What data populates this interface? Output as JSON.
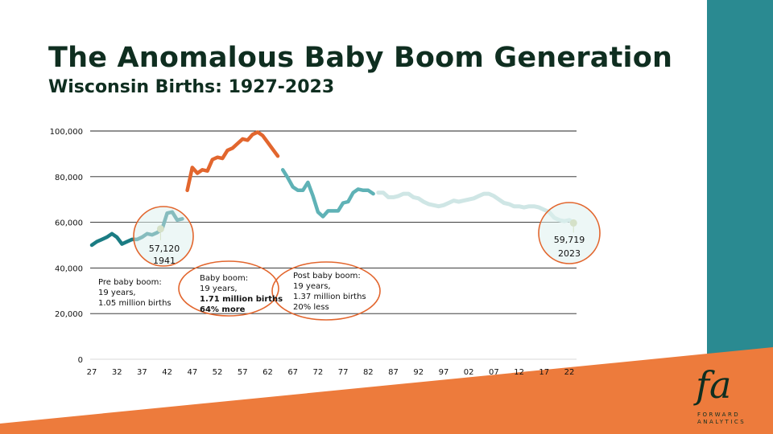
{
  "title": "The Anomalous Baby Boom Generation",
  "subtitle": "Wisconsin Births: 1927-2023",
  "colors": {
    "pre_boom": "#1b7c83",
    "boom": "#e2662e",
    "post_boom": "#5fb2b6",
    "recent": "#cfe6e5",
    "circle": "#e2662e",
    "accent_teal": "#2a8a91",
    "accent_orange": "#ed7b3c",
    "marker": "#c9cf9a"
  },
  "chart_data": {
    "type": "line",
    "ylim": [
      0,
      100000
    ],
    "yticks": [
      "0",
      "20,000",
      "40,000",
      "60,000",
      "80,000",
      "100,000"
    ],
    "xticks": [
      "27",
      "32",
      "37",
      "42",
      "47",
      "52",
      "57",
      "62",
      "67",
      "72",
      "77",
      "82",
      "87",
      "92",
      "97",
      "02",
      "07",
      "12",
      "17",
      "22"
    ],
    "grid": true,
    "series": [
      {
        "segment": "pre_boom",
        "x": [
          1927,
          1928,
          1929,
          1930,
          1931,
          1932,
          1933,
          1934,
          1935,
          1936,
          1937,
          1938,
          1939,
          1940,
          1941,
          1942,
          1943,
          1944,
          1945
        ],
        "y": [
          50000,
          51500,
          52500,
          53500,
          55000,
          53500,
          50500,
          51500,
          52500,
          52500,
          53500,
          55000,
          54500,
          55500,
          57120,
          64000,
          64500,
          61000,
          61500
        ]
      },
      {
        "segment": "boom",
        "x": [
          1946,
          1947,
          1948,
          1949,
          1950,
          1951,
          1952,
          1953,
          1954,
          1955,
          1956,
          1957,
          1958,
          1959,
          1960,
          1961,
          1962,
          1963,
          1964
        ],
        "y": [
          74000,
          84000,
          81500,
          83000,
          82500,
          87500,
          88500,
          88000,
          91500,
          92500,
          94500,
          96500,
          96000,
          98500,
          99500,
          98000,
          95000,
          92000,
          89000
        ]
      },
      {
        "segment": "post_boom",
        "x": [
          1965,
          1966,
          1967,
          1968,
          1969,
          1970,
          1971,
          1972,
          1973,
          1974,
          1975,
          1976,
          1977,
          1978,
          1979,
          1980,
          1981,
          1982,
          1983
        ],
        "y": [
          83000,
          79500,
          75500,
          74000,
          74000,
          77500,
          71500,
          64500,
          62500,
          65000,
          65000,
          65000,
          68500,
          69000,
          73000,
          74500,
          74000,
          74000,
          72500
        ]
      },
      {
        "segment": "recent",
        "x": [
          1984,
          1985,
          1986,
          1987,
          1988,
          1989,
          1990,
          1991,
          1992,
          1993,
          1994,
          1995,
          1996,
          1997,
          1998,
          1999,
          2000,
          2001,
          2002,
          2003,
          2004,
          2005,
          2006,
          2007,
          2008,
          2009,
          2010,
          2011,
          2012,
          2013,
          2014,
          2015,
          2016,
          2017,
          2018,
          2019,
          2020,
          2021,
          2022,
          2023
        ],
        "y": [
          73000,
          73000,
          71000,
          71000,
          71500,
          72500,
          72500,
          71000,
          70500,
          69000,
          68000,
          67500,
          67000,
          67500,
          68500,
          69500,
          69000,
          69500,
          70000,
          70500,
          71500,
          72500,
          72500,
          71500,
          70000,
          68500,
          68000,
          67000,
          67000,
          66500,
          67000,
          67000,
          66500,
          65500,
          64500,
          62000,
          61000,
          60500,
          61000,
          59719
        ]
      }
    ],
    "annotations": {
      "pre_boom": {
        "value": "57,120",
        "year": "1941",
        "marker_x": 1941,
        "marker_y": 57120
      },
      "recent": {
        "value": "59,719",
        "year": "2023",
        "marker_x": 2023,
        "marker_y": 59719
      },
      "pre_note": [
        "Pre baby boom:",
        "19 years,",
        "1.05 million births"
      ],
      "boom_note": [
        "Baby boom:",
        "19 years,",
        "1.71 million births",
        "64% more"
      ],
      "post_note": [
        "Post baby boom:",
        "19 years,",
        "1.37 million births",
        "20% less"
      ]
    }
  },
  "logo": {
    "mark": "fa",
    "line1": "FORWARD",
    "line2": "ANALYTICS"
  }
}
